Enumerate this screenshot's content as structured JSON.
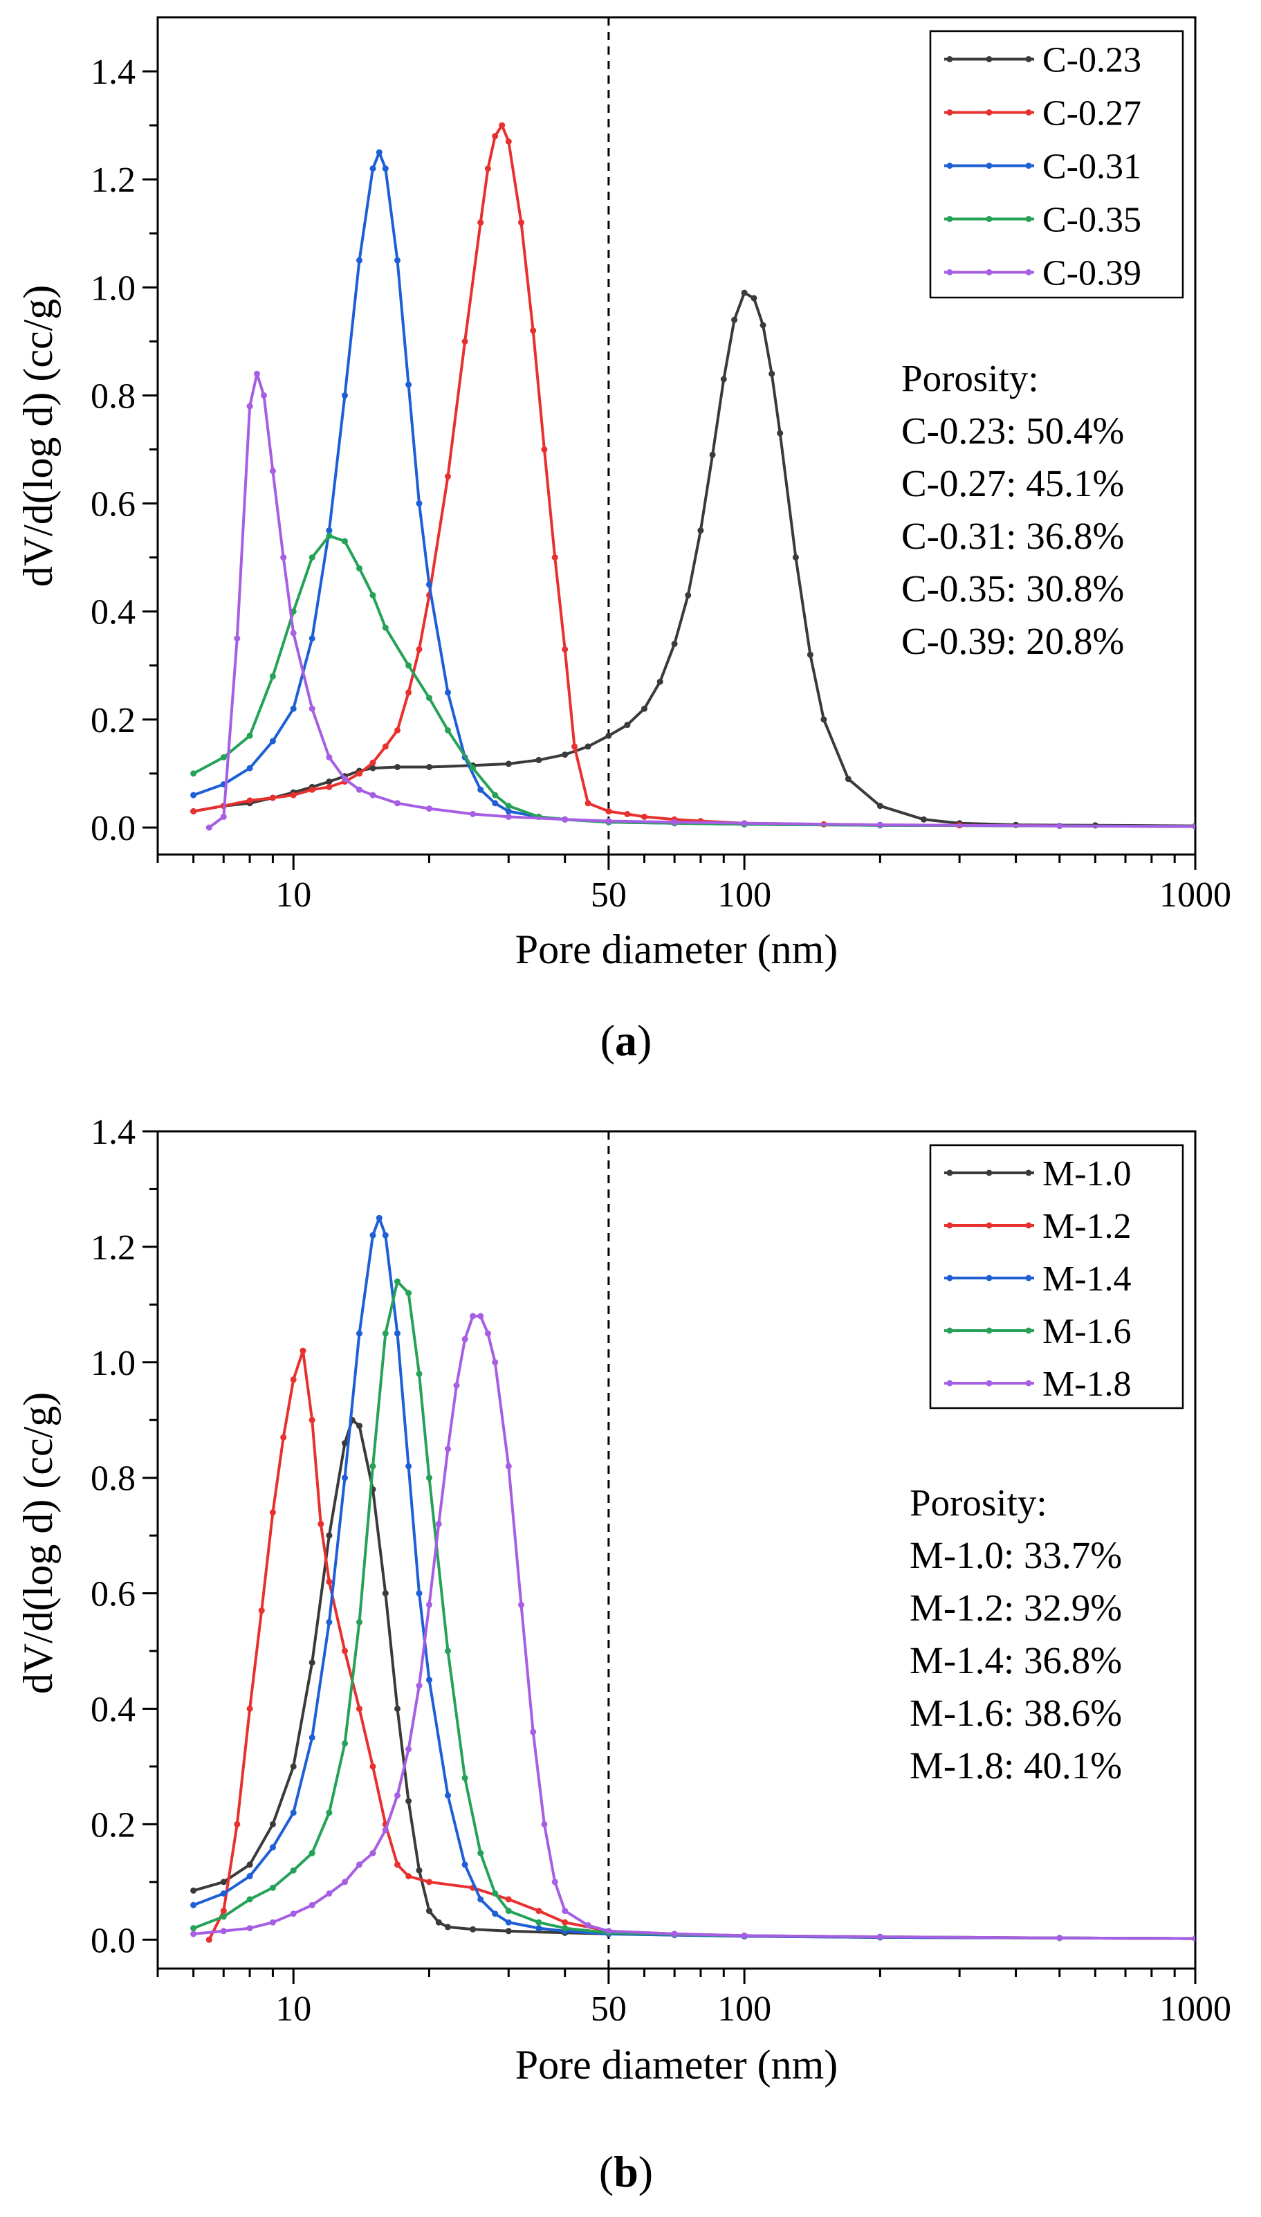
{
  "chart_data": [
    {
      "panel_label": {
        "open": "(",
        "letter": "a",
        "close": ")"
      },
      "type": "line",
      "title": "",
      "xlabel": "Pore diameter (nm)",
      "ylabel": "dV/d(log d)  (cc/g)",
      "xscale": "log",
      "xlim": [
        5,
        1000
      ],
      "ylim": [
        -0.05,
        1.5
      ],
      "xticks": [
        10,
        50,
        100,
        1000
      ],
      "xtick_labels": [
        "10",
        "50",
        "100",
        "1000"
      ],
      "yticks": [
        0.0,
        0.2,
        0.4,
        0.6,
        0.8,
        1.0,
        1.2,
        1.4
      ],
      "ytick_labels": [
        "0.0",
        "0.2",
        "0.4",
        "0.6",
        "0.8",
        "1.0",
        "1.2",
        "1.4"
      ],
      "reference_line": {
        "x": 50,
        "style": "dashed"
      },
      "grid": false,
      "legend_position": "top-right",
      "series": [
        {
          "name": "C-0.23",
          "color": "#3a3a3a",
          "x": [
            6,
            7,
            8,
            9,
            10,
            11,
            12,
            13,
            14,
            15,
            17,
            20,
            25,
            30,
            35,
            40,
            45,
            50,
            55,
            60,
            65,
            70,
            75,
            80,
            85,
            90,
            95,
            100,
            105,
            110,
            115,
            120,
            130,
            140,
            150,
            170,
            200,
            250,
            300,
            400,
            600,
            1000
          ],
          "y": [
            0.03,
            0.04,
            0.045,
            0.055,
            0.065,
            0.075,
            0.085,
            0.095,
            0.105,
            0.11,
            0.112,
            0.112,
            0.115,
            0.118,
            0.125,
            0.135,
            0.15,
            0.17,
            0.19,
            0.22,
            0.27,
            0.34,
            0.43,
            0.55,
            0.69,
            0.83,
            0.94,
            0.99,
            0.98,
            0.93,
            0.84,
            0.73,
            0.5,
            0.32,
            0.2,
            0.09,
            0.04,
            0.015,
            0.008,
            0.005,
            0.004,
            0.003
          ]
        },
        {
          "name": "C-0.27",
          "color": "#e8302e",
          "x": [
            6,
            7,
            8,
            9,
            10,
            11,
            12,
            13,
            14,
            15,
            16,
            17,
            18,
            19,
            20,
            22,
            24,
            26,
            27,
            28,
            29,
            30,
            32,
            34,
            36,
            38,
            40,
            42,
            45,
            50,
            55,
            60,
            70,
            80,
            100,
            150,
            200,
            300,
            500,
            1000
          ],
          "y": [
            0.03,
            0.04,
            0.05,
            0.055,
            0.06,
            0.07,
            0.075,
            0.085,
            0.1,
            0.12,
            0.15,
            0.18,
            0.25,
            0.33,
            0.43,
            0.65,
            0.9,
            1.12,
            1.22,
            1.28,
            1.3,
            1.27,
            1.12,
            0.92,
            0.7,
            0.5,
            0.33,
            0.15,
            0.045,
            0.03,
            0.025,
            0.02,
            0.015,
            0.012,
            0.008,
            0.006,
            0.005,
            0.004,
            0.003,
            0.002
          ]
        },
        {
          "name": "C-0.31",
          "color": "#1f5fd6",
          "x": [
            6,
            7,
            8,
            9,
            10,
            11,
            12,
            13,
            14,
            15,
            15.5,
            16,
            17,
            18,
            19,
            20,
            22,
            24,
            26,
            28,
            30,
            35,
            40,
            50,
            70,
            100,
            200,
            500,
            1000
          ],
          "y": [
            0.06,
            0.08,
            0.11,
            0.16,
            0.22,
            0.35,
            0.55,
            0.8,
            1.05,
            1.22,
            1.25,
            1.22,
            1.05,
            0.82,
            0.6,
            0.45,
            0.25,
            0.13,
            0.07,
            0.045,
            0.03,
            0.02,
            0.015,
            0.01,
            0.008,
            0.006,
            0.004,
            0.003,
            0.002
          ]
        },
        {
          "name": "C-0.35",
          "color": "#25a258",
          "x": [
            6,
            7,
            8,
            9,
            10,
            11,
            12,
            13,
            14,
            15,
            16,
            18,
            20,
            22,
            25,
            28,
            30,
            35,
            40,
            50,
            70,
            100,
            200,
            500,
            1000
          ],
          "y": [
            0.1,
            0.13,
            0.17,
            0.28,
            0.4,
            0.5,
            0.54,
            0.53,
            0.48,
            0.43,
            0.37,
            0.3,
            0.24,
            0.18,
            0.11,
            0.06,
            0.04,
            0.02,
            0.015,
            0.01,
            0.008,
            0.006,
            0.004,
            0.003,
            0.002
          ]
        },
        {
          "name": "C-0.39",
          "color": "#a65ee3",
          "x": [
            6.5,
            7,
            7.5,
            8,
            8.3,
            8.6,
            9,
            9.5,
            10,
            11,
            12,
            13,
            14,
            15,
            17,
            20,
            25,
            30,
            40,
            50,
            70,
            100,
            200,
            500,
            1000
          ],
          "y": [
            0.0,
            0.02,
            0.35,
            0.78,
            0.84,
            0.8,
            0.66,
            0.5,
            0.36,
            0.22,
            0.13,
            0.09,
            0.07,
            0.06,
            0.045,
            0.035,
            0.025,
            0.02,
            0.015,
            0.012,
            0.01,
            0.008,
            0.005,
            0.003,
            0.002
          ]
        }
      ],
      "annotations": [
        "Porosity:",
        "C-0.23: 50.4%",
        "C-0.27: 45.1%",
        "C-0.31: 36.8%",
        "C-0.35: 30.8%",
        "C-0.39: 20.8%"
      ]
    },
    {
      "panel_label": {
        "open": "(",
        "letter": "b",
        "close": ")"
      },
      "type": "line",
      "title": "",
      "xlabel": "Pore diameter (nm)",
      "ylabel": "dV/d(log d) (cc/g)",
      "xscale": "log",
      "xlim": [
        5,
        1000
      ],
      "ylim": [
        -0.05,
        1.4
      ],
      "xticks": [
        10,
        50,
        100,
        1000
      ],
      "xtick_labels": [
        "10",
        "50",
        "100",
        "1000"
      ],
      "yticks": [
        0.0,
        0.2,
        0.4,
        0.6,
        0.8,
        1.0,
        1.2,
        1.4
      ],
      "ytick_labels": [
        "0.0",
        "0.2",
        "0.4",
        "0.6",
        "0.8",
        "1.0",
        "1.2",
        "1.4"
      ],
      "reference_line": {
        "x": 50,
        "style": "dashed"
      },
      "grid": false,
      "legend_position": "top-right",
      "series": [
        {
          "name": "M-1.0",
          "color": "#3a3a3a",
          "x": [
            6,
            7,
            8,
            9,
            10,
            11,
            12,
            13,
            13.5,
            14,
            15,
            16,
            17,
            18,
            19,
            20,
            21,
            22,
            25,
            30,
            40,
            50,
            100,
            200,
            500,
            1000
          ],
          "y": [
            0.085,
            0.1,
            0.13,
            0.2,
            0.3,
            0.48,
            0.7,
            0.86,
            0.9,
            0.89,
            0.78,
            0.6,
            0.4,
            0.24,
            0.12,
            0.05,
            0.03,
            0.022,
            0.018,
            0.015,
            0.012,
            0.01,
            0.006,
            0.004,
            0.003,
            0.002
          ]
        },
        {
          "name": "M-1.2",
          "color": "#e8302e",
          "x": [
            6.5,
            7,
            7.5,
            8,
            8.5,
            9,
            9.5,
            10,
            10.5,
            11,
            11.5,
            12,
            13,
            14,
            15,
            16,
            17,
            18,
            20,
            25,
            30,
            35,
            40,
            50,
            70,
            100,
            200,
            500,
            1000
          ],
          "y": [
            0.0,
            0.05,
            0.2,
            0.4,
            0.57,
            0.74,
            0.87,
            0.97,
            1.02,
            0.9,
            0.72,
            0.62,
            0.5,
            0.4,
            0.3,
            0.2,
            0.13,
            0.11,
            0.1,
            0.09,
            0.07,
            0.05,
            0.03,
            0.015,
            0.01,
            0.007,
            0.005,
            0.003,
            0.002
          ]
        },
        {
          "name": "M-1.4",
          "color": "#1f5fd6",
          "x": [
            6,
            7,
            8,
            9,
            10,
            11,
            12,
            13,
            14,
            15,
            15.5,
            16,
            17,
            18,
            19,
            20,
            22,
            24,
            26,
            28,
            30,
            35,
            40,
            50,
            70,
            100,
            200,
            500,
            1000
          ],
          "y": [
            0.06,
            0.08,
            0.11,
            0.16,
            0.22,
            0.35,
            0.55,
            0.8,
            1.05,
            1.22,
            1.25,
            1.22,
            1.05,
            0.82,
            0.6,
            0.45,
            0.25,
            0.13,
            0.07,
            0.045,
            0.03,
            0.02,
            0.015,
            0.01,
            0.008,
            0.006,
            0.004,
            0.003,
            0.002
          ]
        },
        {
          "name": "M-1.6",
          "color": "#25a258",
          "x": [
            6,
            7,
            8,
            9,
            10,
            11,
            12,
            13,
            14,
            15,
            16,
            17,
            18,
            19,
            20,
            22,
            24,
            26,
            28,
            30,
            35,
            40,
            50,
            70,
            100,
            200,
            500,
            1000
          ],
          "y": [
            0.02,
            0.04,
            0.07,
            0.09,
            0.12,
            0.15,
            0.22,
            0.34,
            0.55,
            0.82,
            1.05,
            1.14,
            1.12,
            0.98,
            0.8,
            0.5,
            0.28,
            0.15,
            0.08,
            0.05,
            0.03,
            0.02,
            0.012,
            0.009,
            0.007,
            0.005,
            0.003,
            0.002
          ]
        },
        {
          "name": "M-1.8",
          "color": "#a65ee3",
          "x": [
            6,
            7,
            8,
            9,
            10,
            11,
            12,
            13,
            14,
            15,
            16,
            17,
            18,
            19,
            20,
            21,
            22,
            23,
            24,
            25,
            26,
            27,
            28,
            30,
            32,
            34,
            36,
            38,
            40,
            45,
            50,
            70,
            100,
            200,
            500,
            1000
          ],
          "y": [
            0.01,
            0.015,
            0.02,
            0.03,
            0.045,
            0.06,
            0.08,
            0.1,
            0.13,
            0.15,
            0.19,
            0.25,
            0.33,
            0.44,
            0.58,
            0.72,
            0.85,
            0.96,
            1.04,
            1.08,
            1.08,
            1.05,
            1.0,
            0.82,
            0.58,
            0.36,
            0.2,
            0.1,
            0.05,
            0.025,
            0.015,
            0.01,
            0.007,
            0.005,
            0.003,
            0.002
          ]
        }
      ],
      "annotations": [
        "Porosity:",
        "M-1.0: 33.7%",
        "M-1.2: 32.9%",
        "M-1.4: 36.8%",
        "M-1.6: 38.6%",
        "M-1.8: 40.1%"
      ]
    }
  ]
}
